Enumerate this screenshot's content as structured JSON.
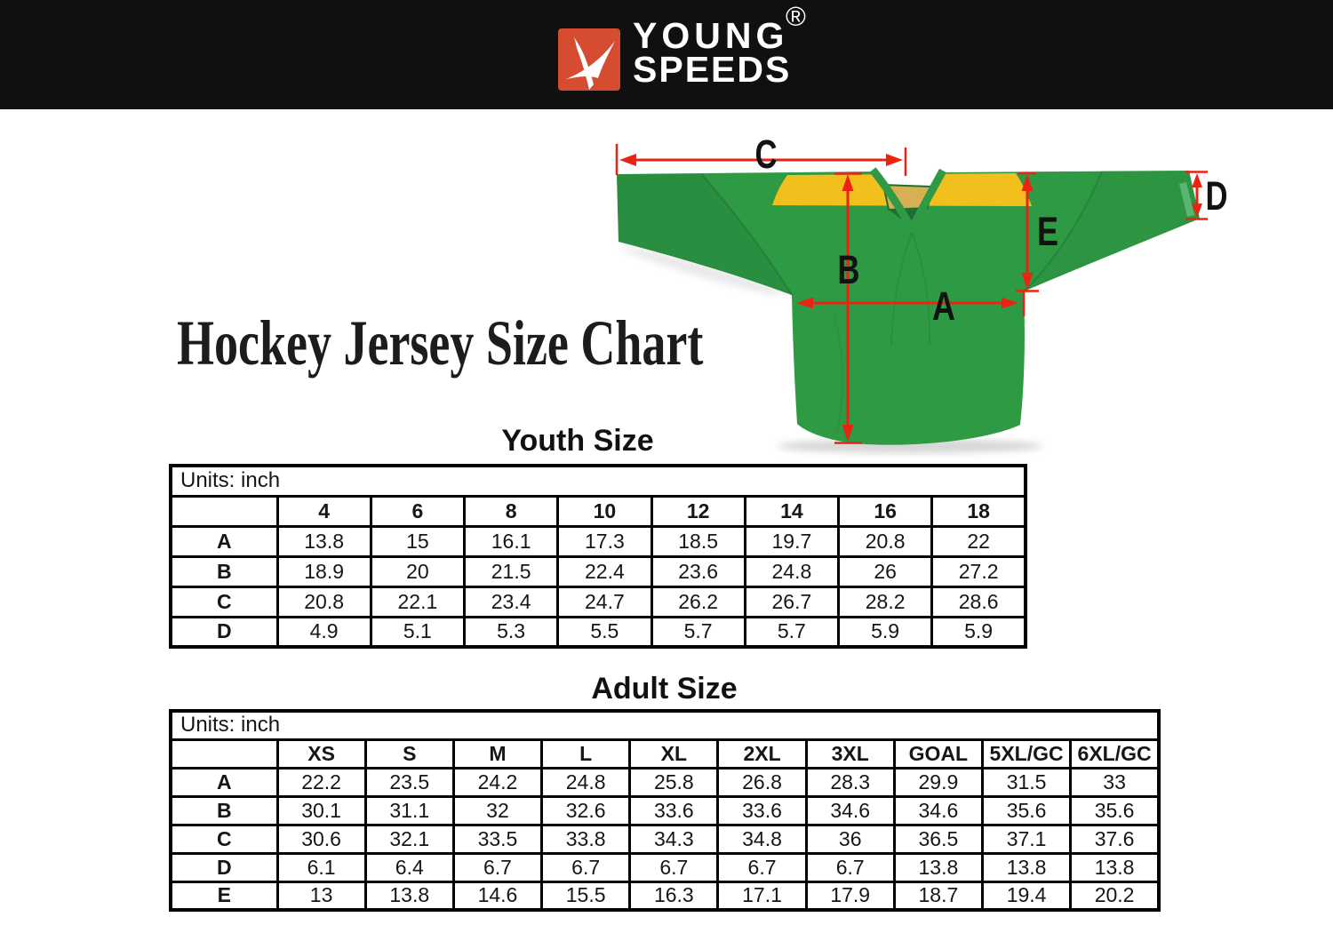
{
  "page": {
    "title": "Hockey Jersey Size Chart",
    "header_bg": "#101010",
    "background": "#ffffff"
  },
  "brand": {
    "line1": "YOUNG",
    "line2": "SPEEDS",
    "registered": "®",
    "logo_bg": "#d64c30",
    "logo_icon": "youngspeeds-swoosh-icon"
  },
  "diagram": {
    "description": "hockey jersey with measurement arrows",
    "measure_labels": {
      "a": "A",
      "b": "B",
      "c": "C",
      "d": "D",
      "e": "E"
    },
    "arrow_color": "#ec2213",
    "jersey": {
      "body_green": "#2f9a44",
      "fold_green": "#1d7031",
      "yoke_yellow": "#f2c01c",
      "inner_tan": "#d6b053"
    }
  },
  "chart_data": [
    {
      "type": "table",
      "title": "Youth Size",
      "units_label": "Units: inch",
      "columns": [
        "4",
        "6",
        "8",
        "10",
        "12",
        "14",
        "16",
        "18"
      ],
      "rows": [
        {
          "label": "A",
          "values": [
            "13.8",
            "15",
            "16.1",
            "17.3",
            "18.5",
            "19.7",
            "20.8",
            "22"
          ]
        },
        {
          "label": "B",
          "values": [
            "18.9",
            "20",
            "21.5",
            "22.4",
            "23.6",
            "24.8",
            "26",
            "27.2"
          ]
        },
        {
          "label": "C",
          "values": [
            "20.8",
            "22.1",
            "23.4",
            "24.7",
            "26.2",
            "26.7",
            "28.2",
            "28.6"
          ]
        },
        {
          "label": "D",
          "values": [
            "4.9",
            "5.1",
            "5.3",
            "5.5",
            "5.7",
            "5.7",
            "5.9",
            "5.9"
          ]
        }
      ]
    },
    {
      "type": "table",
      "title": "Adult Size",
      "units_label": "Units: inch",
      "columns": [
        "XS",
        "S",
        "M",
        "L",
        "XL",
        "2XL",
        "3XL",
        "GOAL",
        "5XL/GC",
        "6XL/GC"
      ],
      "rows": [
        {
          "label": "A",
          "values": [
            "22.2",
            "23.5",
            "24.2",
            "24.8",
            "25.8",
            "26.8",
            "28.3",
            "29.9",
            "31.5",
            "33"
          ]
        },
        {
          "label": "B",
          "values": [
            "30.1",
            "31.1",
            "32",
            "32.6",
            "33.6",
            "33.6",
            "34.6",
            "34.6",
            "35.6",
            "35.6"
          ]
        },
        {
          "label": "C",
          "values": [
            "30.6",
            "32.1",
            "33.5",
            "33.8",
            "34.3",
            "34.8",
            "36",
            "36.5",
            "37.1",
            "37.6"
          ]
        },
        {
          "label": "D",
          "values": [
            "6.1",
            "6.4",
            "6.7",
            "6.7",
            "6.7",
            "6.7",
            "6.7",
            "13.8",
            "13.8",
            "13.8"
          ]
        },
        {
          "label": "E",
          "values": [
            "13",
            "13.8",
            "14.6",
            "15.5",
            "16.3",
            "17.1",
            "17.9",
            "18.7",
            "19.4",
            "20.2"
          ]
        }
      ]
    }
  ]
}
